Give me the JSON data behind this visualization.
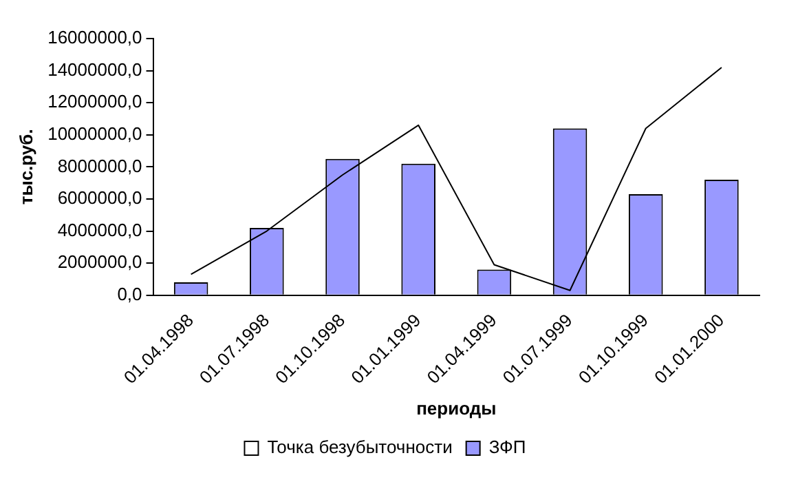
{
  "chart_data": {
    "type": "bar",
    "xlabel": "периоды",
    "ylabel": "тыс.руб.",
    "categories": [
      "01.04.1998",
      "01.07.1998",
      "01.10.1998",
      "01.01.1999",
      "01.04.1999",
      "01.07.1999",
      "01.10.1999",
      "01.01.2000"
    ],
    "series": [
      {
        "name": "Точка безубыточности",
        "type": "line",
        "color": "#000000",
        "values": [
          1300000,
          4000000,
          7500000,
          10600000,
          1900000,
          300000,
          10400000,
          14200000
        ]
      },
      {
        "name": "ЗФП",
        "color": "#9999ff",
        "values": [
          800000,
          4200000,
          8500000,
          8200000,
          1600000,
          10400000,
          6300000,
          7200000
        ]
      }
    ],
    "ylim": [
      0,
      16000000
    ],
    "yticks": [
      {
        "value": 0,
        "label": "0,0"
      },
      {
        "value": 2000000,
        "label": "2000000,0"
      },
      {
        "value": 4000000,
        "label": "4000000,0"
      },
      {
        "value": 6000000,
        "label": "6000000,0"
      },
      {
        "value": 8000000,
        "label": "8000000,0"
      },
      {
        "value": 10000000,
        "label": "10000000,0"
      },
      {
        "value": 12000000,
        "label": "12000000,0"
      },
      {
        "value": 14000000,
        "label": "14000000,0"
      },
      {
        "value": 16000000,
        "label": "16000000,0"
      }
    ],
    "grid": false,
    "legend": "bottom",
    "marker": "none"
  }
}
